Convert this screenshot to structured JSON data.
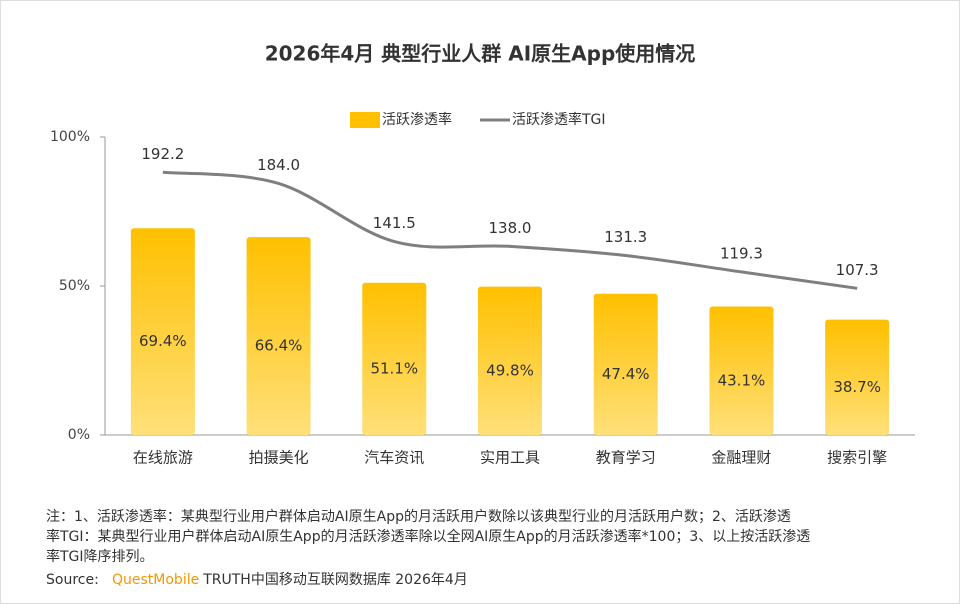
{
  "chart_data": {
    "type": "bar",
    "title": "2026年4月 典型行业人群 AI原生App使用情况",
    "categories": [
      "在线旅游",
      "拍摄美化",
      "汽车资讯",
      "实用工具",
      "教育学习",
      "金融理财",
      "搜索引擎"
    ],
    "series": [
      {
        "name": "活跃渗透率",
        "type": "bar",
        "color": "#ffc000",
        "values": [
          69.4,
          66.4,
          51.1,
          49.8,
          47.4,
          43.1,
          38.7
        ],
        "value_labels": [
          "69.4%",
          "66.4%",
          "51.1%",
          "49.8%",
          "47.4%",
          "43.1%",
          "38.7%"
        ]
      },
      {
        "name": "活跃渗透率TGI",
        "type": "line",
        "axis": "y2",
        "color": "#7f7f7f",
        "values": [
          192.2,
          184.0,
          141.5,
          138.0,
          131.3,
          119.3,
          107.3
        ],
        "value_labels": [
          "192.2",
          "184.0",
          "141.5",
          "138.0",
          "131.3",
          "119.3",
          "107.3"
        ]
      }
    ],
    "ylim": [
      0,
      100
    ],
    "yticks": [
      {
        "value": 0,
        "label": "0%"
      },
      {
        "value": 50,
        "label": "50%"
      },
      {
        "value": 100,
        "label": "100%"
      }
    ],
    "y2lim": [
      0,
      218
    ],
    "legend": "top",
    "notes": [
      "注：1、活跃渗透率：某典型行业用户群体启动AI原生App的月活跃用户数除以该典型行业的月活跃用户数；2、活跃渗透",
      "率TGI：某典型行业用户群体启动AI原生App的月活跃渗透率除以全网AI原生App的月活跃渗透率*100；3、以上按活跃渗透",
      "率TGI降序排列。"
    ],
    "source_label": "Source:",
    "source_brand": "QuestMobile",
    "source_text": "TRUTH中国移动互联网数据库 2026年4月"
  }
}
